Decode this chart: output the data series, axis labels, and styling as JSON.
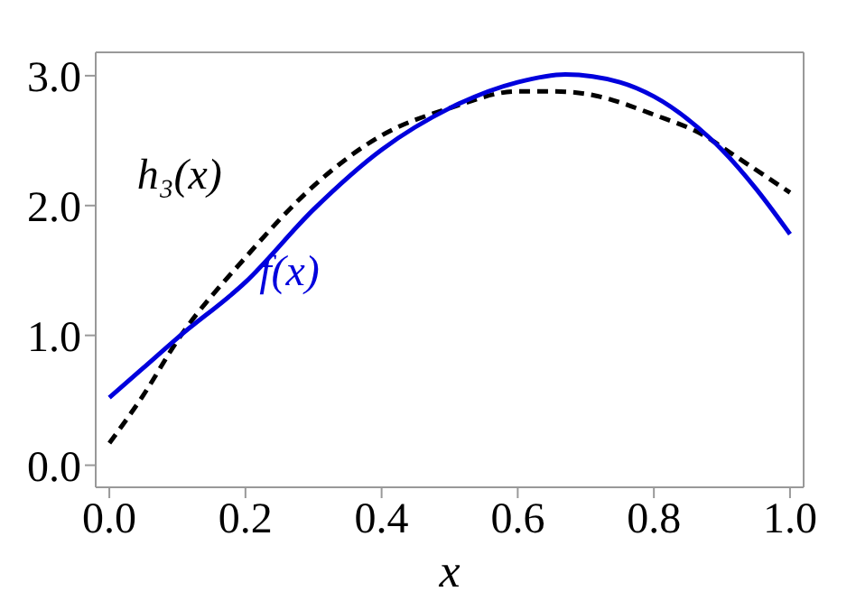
{
  "chart_data": {
    "type": "line",
    "xlabel": "x",
    "xlim": [
      -0.02,
      1.02
    ],
    "ylim": [
      -0.17,
      3.18
    ],
    "xticks": [
      {
        "value": 0,
        "label": "0.0"
      },
      0.2,
      0.4,
      0.6,
      0.8,
      {
        "value": 1,
        "label": "1.0"
      }
    ],
    "yticks": [
      {
        "value": 0,
        "label": "0.0"
      },
      {
        "value": 1,
        "label": "1.0"
      },
      {
        "value": 2,
        "label": "2.0"
      },
      {
        "value": 3,
        "label": "3.0"
      }
    ],
    "marker": "none",
    "series": [
      {
        "name": "h₃(x)",
        "color": "#000000",
        "line_style": "dashed",
        "x": [
          0,
          0.05,
          0.1,
          0.2,
          0.3,
          0.4,
          0.5,
          0.6,
          0.65,
          0.7,
          0.8,
          0.88,
          0.9,
          1.0
        ],
        "values": [
          0.17,
          0.54,
          0.96,
          1.6,
          2.15,
          2.54,
          2.75,
          2.88,
          2.88,
          2.86,
          2.7,
          2.52,
          2.45,
          2.1
        ]
      },
      {
        "name": "f(x)",
        "color": "#0000dd",
        "line_style": "solid",
        "x": [
          0,
          0.05,
          0.1,
          0.2,
          0.3,
          0.4,
          0.5,
          0.6,
          0.67,
          0.75,
          0.8,
          0.88,
          0.9,
          0.95,
          1.0
        ],
        "values": [
          0.52,
          0.75,
          0.98,
          1.41,
          1.97,
          2.43,
          2.75,
          2.95,
          3.01,
          2.95,
          2.84,
          2.53,
          2.43,
          2.13,
          1.78
        ]
      }
    ]
  }
}
